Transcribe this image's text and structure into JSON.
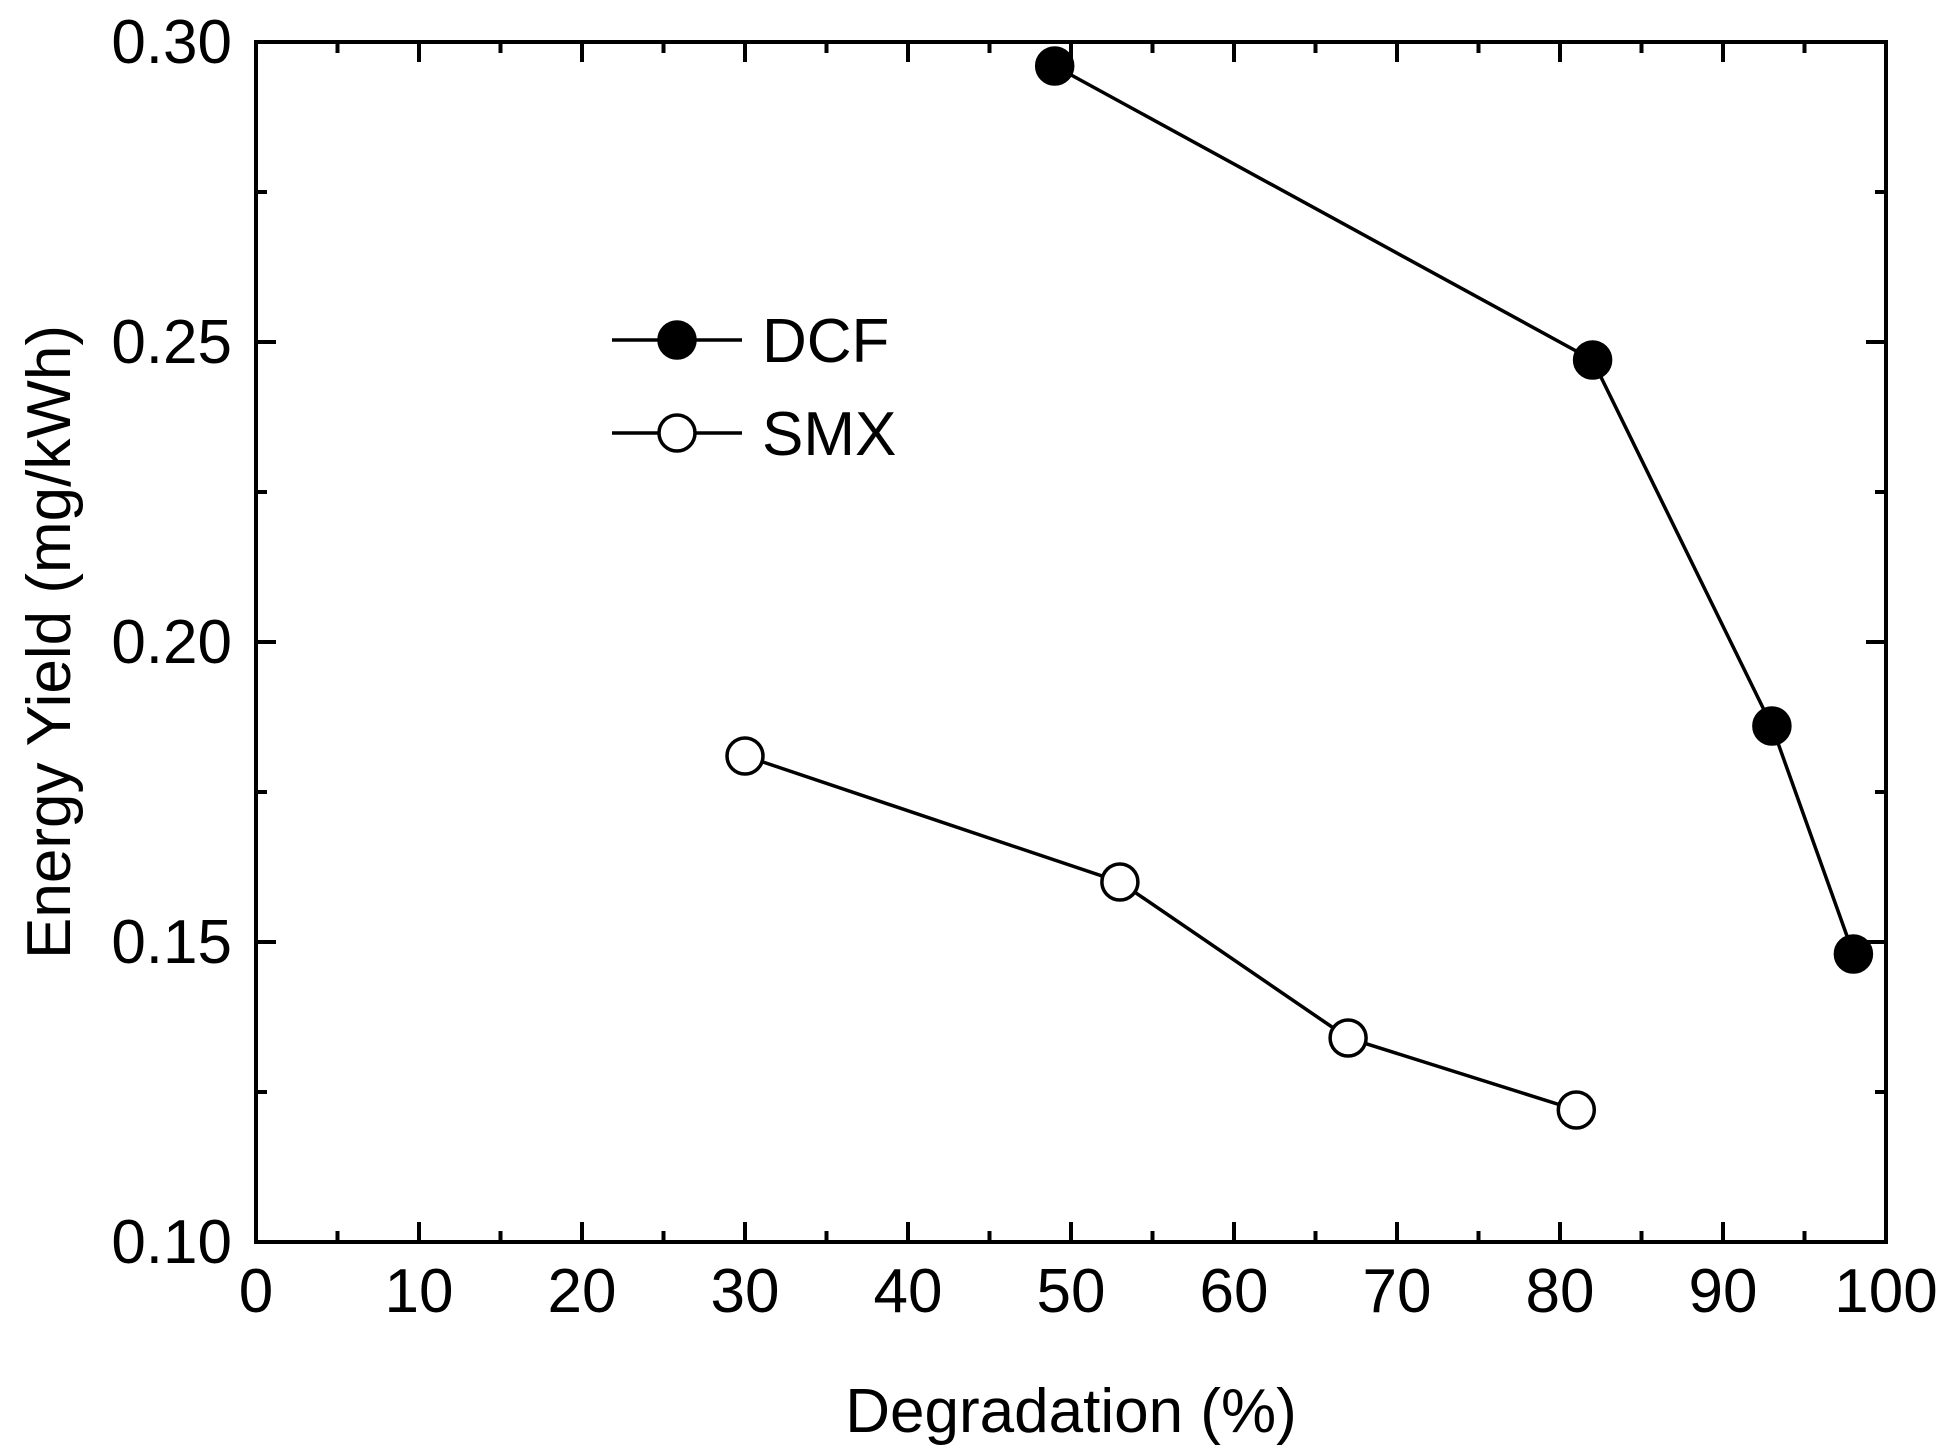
{
  "chart_data": {
    "type": "line",
    "title": "",
    "xlabel": "Degradation (%)",
    "ylabel": "Energy Yield (mg/kWh)",
    "xlim": [
      0,
      100
    ],
    "ylim": [
      0.1,
      0.3
    ],
    "xticks": [
      "0",
      "10",
      "20",
      "30",
      "40",
      "50",
      "60",
      "70",
      "80",
      "90",
      "100"
    ],
    "yticks": [
      "0.10",
      "0.15",
      "0.20",
      "0.25",
      "0.30"
    ],
    "grid": false,
    "legend_position": "upper-left-center",
    "series": [
      {
        "name": "DCF",
        "marker": "filled-circle",
        "color": "#000000",
        "x": [
          49,
          82,
          93,
          98
        ],
        "y": [
          0.296,
          0.247,
          0.186,
          0.148
        ]
      },
      {
        "name": "SMX",
        "marker": "open-circle",
        "color": "#000000",
        "x": [
          30,
          53,
          67,
          81
        ],
        "y": [
          0.181,
          0.16,
          0.134,
          0.122
        ]
      }
    ]
  }
}
